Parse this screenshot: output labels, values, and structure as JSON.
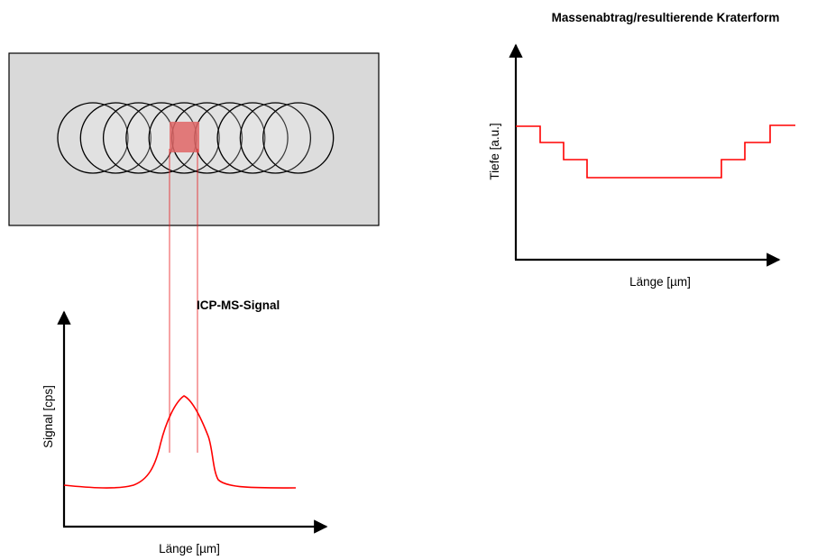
{
  "crater_chart": {
    "title": "Massenabtrag/resultierende Kraterform",
    "xlabel": "Länge [µm]",
    "ylabel": "Tiefe [a.u.]"
  },
  "signal_chart": {
    "title": "ICP-MS-Signal",
    "xlabel": "Länge [µm]",
    "ylabel": "Signal [cps]"
  },
  "colors": {
    "sample_fill": "#d9d9d9",
    "highlight": "#e06666",
    "curve": "#ff0000",
    "axis": "#000000"
  },
  "laser_spots": {
    "count": 10
  }
}
